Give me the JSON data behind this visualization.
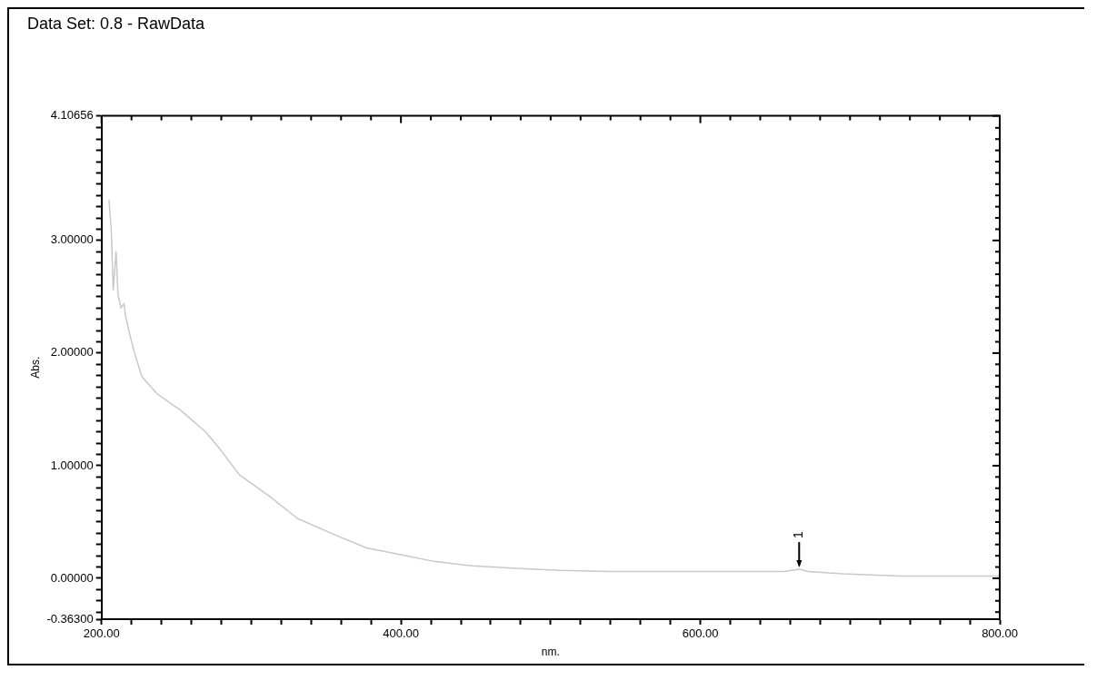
{
  "chart_data": {
    "type": "line",
    "title": "Data Set: 0.8 - RawData",
    "xlabel": "nm.",
    "ylabel": "Abs.",
    "x": [
      205,
      206.5,
      207.8,
      209.7,
      211,
      213,
      215,
      216,
      219,
      222,
      227,
      237,
      253,
      269.5,
      279,
      292,
      312,
      331,
      357,
      377,
      400,
      422,
      448,
      474,
      506,
      539,
      604,
      656,
      666,
      672,
      695,
      714,
      734,
      800
    ],
    "series": [
      {
        "color": "#c8c8c8",
        "values": [
          3.36,
          3.09,
          2.56,
          2.9,
          2.52,
          2.4,
          2.44,
          2.33,
          2.16,
          2.0,
          1.79,
          1.64,
          1.49,
          1.3,
          1.15,
          0.92,
          0.73,
          0.53,
          0.38,
          0.27,
          0.21,
          0.15,
          0.11,
          0.09,
          0.07,
          0.06,
          0.06,
          0.06,
          0.08,
          0.06,
          0.04,
          0.03,
          0.02,
          0.02
        ]
      }
    ],
    "xlim": [
      200,
      800
    ],
    "xticks": [
      {
        "value": 200,
        "label": "200.00"
      },
      {
        "value": 220,
        "label": null
      },
      {
        "value": 240,
        "label": null
      },
      {
        "value": 260,
        "label": null
      },
      {
        "value": 280,
        "label": null
      },
      {
        "value": 300,
        "label": null
      },
      {
        "value": 320,
        "label": null
      },
      {
        "value": 340,
        "label": null
      },
      {
        "value": 360,
        "label": null
      },
      {
        "value": 380,
        "label": null
      },
      {
        "value": 400,
        "label": "400.00"
      },
      {
        "value": 420,
        "label": null
      },
      {
        "value": 440,
        "label": null
      },
      {
        "value": 460,
        "label": null
      },
      {
        "value": 480,
        "label": null
      },
      {
        "value": 500,
        "label": null
      },
      {
        "value": 520,
        "label": null
      },
      {
        "value": 540,
        "label": null
      },
      {
        "value": 560,
        "label": null
      },
      {
        "value": 580,
        "label": null
      },
      {
        "value": 600,
        "label": "600.00"
      },
      {
        "value": 620,
        "label": null
      },
      {
        "value": 640,
        "label": null
      },
      {
        "value": 660,
        "label": null
      },
      {
        "value": 680,
        "label": null
      },
      {
        "value": 700,
        "label": null
      },
      {
        "value": 720,
        "label": null
      },
      {
        "value": 740,
        "label": null
      },
      {
        "value": 760,
        "label": null
      },
      {
        "value": 780,
        "label": null
      },
      {
        "value": 800,
        "label": "800.00"
      }
    ],
    "ylim": [
      -0.363,
      4.10656
    ],
    "yticks": [
      {
        "value": -0.363,
        "label": "-0.36300"
      },
      {
        "value": -0.3,
        "label": null
      },
      {
        "value": -0.2,
        "label": null
      },
      {
        "value": -0.1,
        "label": null
      },
      {
        "value": 0,
        "label": "0.00000"
      },
      {
        "value": 0.1,
        "label": null
      },
      {
        "value": 0.2,
        "label": null
      },
      {
        "value": 0.3,
        "label": null
      },
      {
        "value": 0.4,
        "label": null
      },
      {
        "value": 0.5,
        "label": null
      },
      {
        "value": 0.6,
        "label": null
      },
      {
        "value": 0.7,
        "label": null
      },
      {
        "value": 0.8,
        "label": null
      },
      {
        "value": 0.9,
        "label": null
      },
      {
        "value": 1,
        "label": "1.00000"
      },
      {
        "value": 1.1,
        "label": null
      },
      {
        "value": 1.2,
        "label": null
      },
      {
        "value": 1.3,
        "label": null
      },
      {
        "value": 1.4,
        "label": null
      },
      {
        "value": 1.5,
        "label": null
      },
      {
        "value": 1.6,
        "label": null
      },
      {
        "value": 1.7,
        "label": null
      },
      {
        "value": 1.8,
        "label": null
      },
      {
        "value": 1.9,
        "label": null
      },
      {
        "value": 2,
        "label": "2.00000"
      },
      {
        "value": 2.1,
        "label": null
      },
      {
        "value": 2.2,
        "label": null
      },
      {
        "value": 2.3,
        "label": null
      },
      {
        "value": 2.4,
        "label": null
      },
      {
        "value": 2.5,
        "label": null
      },
      {
        "value": 2.6,
        "label": null
      },
      {
        "value": 2.7,
        "label": null
      },
      {
        "value": 2.8,
        "label": null
      },
      {
        "value": 2.9,
        "label": null
      },
      {
        "value": 3,
        "label": "3.00000"
      },
      {
        "value": 3.1,
        "label": null
      },
      {
        "value": 3.2,
        "label": null
      },
      {
        "value": 3.3,
        "label": null
      },
      {
        "value": 3.4,
        "label": null
      },
      {
        "value": 3.5,
        "label": null
      },
      {
        "value": 3.6,
        "label": null
      },
      {
        "value": 3.7,
        "label": null
      },
      {
        "value": 3.8,
        "label": null
      },
      {
        "value": 3.9,
        "label": null
      },
      {
        "value": 4,
        "label": null
      },
      {
        "value": 4.10656,
        "label": "4.10656"
      }
    ],
    "annotations": [
      {
        "text": "1",
        "x": 666,
        "y": 0.08
      }
    ],
    "grid": false,
    "legend": false,
    "marker": "none",
    "line_style": "solid"
  }
}
